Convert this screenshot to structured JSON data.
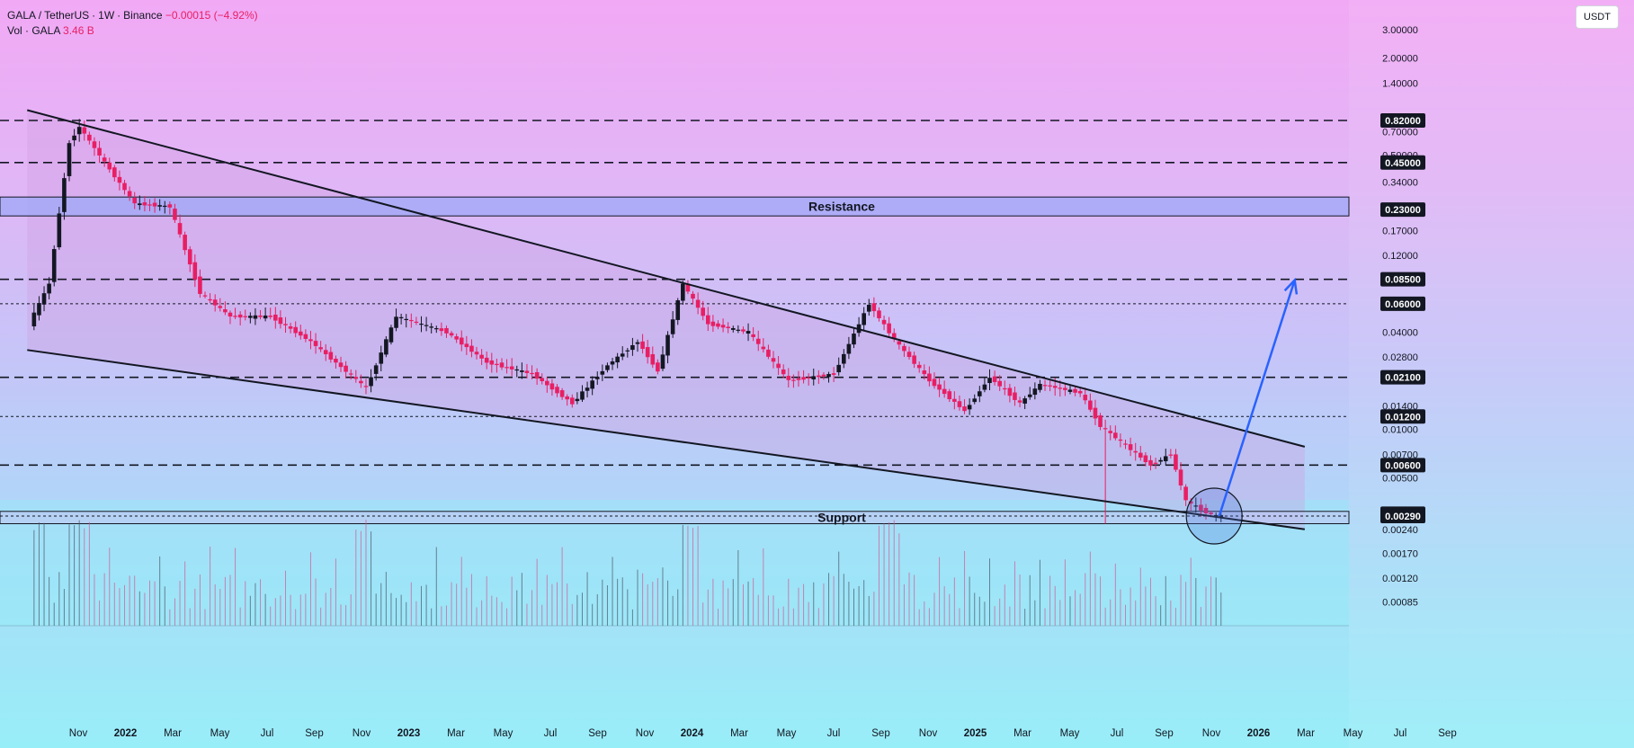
{
  "legend": {
    "symbol": "GALA / TetherUS",
    "interval": "1W",
    "exchange": "Binance",
    "change": "−0.00015 (−4.92%)",
    "volume_label": "Vol · GALA",
    "volume_value": "3.46 B"
  },
  "unit_button": "USDT",
  "colors": {
    "up": "#131722",
    "down": "#e91e63",
    "trendline": "#131722",
    "resistance_zone": "#9fa8f7",
    "support_zone": "#c2c6f2",
    "arrow": "#2962ff",
    "circle": "#4a6fd6",
    "channel_fill": "#cf9fe0"
  },
  "chart_data": {
    "type": "candlestick",
    "scale": "log",
    "x_ticks": [
      "Nov",
      "2022",
      "Mar",
      "May",
      "Jul",
      "Sep",
      "Nov",
      "2023",
      "Mar",
      "May",
      "Jul",
      "Sep",
      "Nov",
      "2024",
      "Mar",
      "May",
      "Jul",
      "Sep",
      "Nov",
      "2025",
      "Mar",
      "May",
      "Jul",
      "Sep",
      "Nov",
      "2026",
      "Mar",
      "May",
      "Jul",
      "Sep"
    ],
    "y_ticks": [
      "3.00000",
      "2.00000",
      "1.40000",
      "0.70000",
      "0.50000",
      "0.34000",
      "0.17000",
      "0.12000",
      "0.04000",
      "0.02800",
      "0.01400",
      "0.01000",
      "0.00700",
      "0.00500",
      "0.00240",
      "0.00170",
      "0.00120",
      "0.00085"
    ],
    "levels": [
      {
        "label": "0.82000",
        "value": 0.82,
        "style": "dashed"
      },
      {
        "label": "0.45000",
        "value": 0.45,
        "style": "dashed"
      },
      {
        "label": "0.23000",
        "value": 0.23,
        "style": "solid"
      },
      {
        "label": "0.08500",
        "value": 0.085,
        "style": "dashed"
      },
      {
        "label": "0.06000",
        "value": 0.06,
        "style": "dotted"
      },
      {
        "label": "0.02100",
        "value": 0.021,
        "style": "dashed"
      },
      {
        "label": "0.01200",
        "value": 0.012,
        "style": "dotted"
      },
      {
        "label": "0.00600",
        "value": 0.006,
        "style": "dashed"
      },
      {
        "label": "0.00300",
        "value": 0.003,
        "style": "solid"
      },
      {
        "label": "0.00290",
        "value": 0.0029,
        "style": "dotted"
      }
    ],
    "zones": [
      {
        "label": "Resistance",
        "low": 0.21,
        "high": 0.275
      },
      {
        "label": "Support",
        "low": 0.0026,
        "high": 0.0031
      }
    ],
    "price_path": [
      [
        "2021-09-13",
        0.045
      ],
      [
        "2021-10-11",
        0.08
      ],
      [
        "2021-11-08",
        0.6
      ],
      [
        "2021-11-22",
        0.75
      ],
      [
        "2021-12-27",
        0.45
      ],
      [
        "2022-02-07",
        0.25
      ],
      [
        "2022-03-28",
        0.24
      ],
      [
        "2022-05-09",
        0.07
      ],
      [
        "2022-06-20",
        0.05
      ],
      [
        "2022-08-15",
        0.05
      ],
      [
        "2022-10-10",
        0.035
      ],
      [
        "2022-12-26",
        0.018
      ],
      [
        "2023-02-06",
        0.05
      ],
      [
        "2023-04-17",
        0.04
      ],
      [
        "2023-06-12",
        0.026
      ],
      [
        "2023-08-14",
        0.022
      ],
      [
        "2023-10-09",
        0.0145
      ],
      [
        "2023-11-27",
        0.025
      ],
      [
        "2024-01-08",
        0.035
      ],
      [
        "2024-02-05",
        0.023
      ],
      [
        "2024-03-11",
        0.08
      ],
      [
        "2024-04-15",
        0.045
      ],
      [
        "2024-06-10",
        0.04
      ],
      [
        "2024-08-05",
        0.02
      ],
      [
        "2024-10-07",
        0.022
      ],
      [
        "2024-11-25",
        0.06
      ],
      [
        "2024-12-30",
        0.036
      ],
      [
        "2025-02-17",
        0.02
      ],
      [
        "2025-04-07",
        0.013
      ],
      [
        "2025-05-12",
        0.021
      ],
      [
        "2025-06-23",
        0.0145
      ],
      [
        "2025-07-21",
        0.019
      ],
      [
        "2025-09-15",
        0.0168
      ],
      [
        "2025-10-13",
        0.0105
      ],
      [
        "2025-11-24",
        0.0075
      ],
      [
        "2025-12-22",
        0.006
      ],
      [
        "2026-01-19",
        0.007
      ],
      [
        "2026-02-09",
        0.0036
      ],
      [
        "2026-03-09",
        0.00305
      ],
      [
        "2026-03-23",
        0.0029
      ]
    ],
    "spikes": [
      {
        "date": "2021-11-22",
        "high": 0.82
      },
      {
        "date": "2025-10-13",
        "low": 0.0026
      }
    ],
    "channel": {
      "upper": [
        [
          "2021-09-06",
          0.95
        ],
        [
          "2026-07-20",
          0.0078
        ]
      ],
      "lower": [
        [
          "2021-09-06",
          0.031
        ],
        [
          "2026-07-20",
          0.0024
        ]
      ]
    },
    "projection_arrow": {
      "from": [
        "2026-03-23",
        0.0029
      ],
      "to": [
        "2026-07-06",
        0.084
      ]
    },
    "circle_marker": {
      "date": "2026-03-16",
      "value": 0.0029
    }
  }
}
